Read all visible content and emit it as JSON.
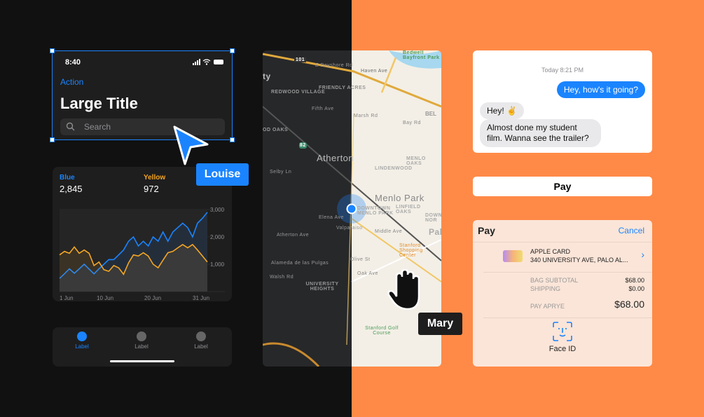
{
  "nav": {
    "time": "8:40",
    "action": "Action",
    "title": "Large Title",
    "search_placeholder": "Search"
  },
  "cursors": {
    "louise": "Louise",
    "mary": "Mary"
  },
  "chart_data": {
    "type": "line",
    "series": [
      {
        "name": "Blue",
        "color": "#1a84ff",
        "headline": "2,845",
        "values": [
          480,
          650,
          830,
          670,
          830,
          1000,
          820,
          650,
          830,
          1000,
          1170,
          1170,
          1340,
          1520,
          1840,
          2000,
          1670,
          1840,
          1670,
          2000,
          1840,
          2180,
          1840,
          2180,
          2340,
          2500,
          2340,
          2000,
          2500,
          2680,
          2900
        ]
      },
      {
        "name": "Yellow",
        "color": "#f5a623",
        "headline": "972",
        "values": [
          1340,
          1470,
          1400,
          1630,
          1400,
          1520,
          1400,
          950,
          1080,
          800,
          740,
          950,
          870,
          630,
          1050,
          1340,
          1300,
          1420,
          1300,
          1000,
          870,
          1150,
          1420,
          1470,
          1600,
          1720,
          1600,
          1720,
          1520,
          1300,
          1080
        ]
      }
    ],
    "x_ticks": [
      "1 Jun",
      "10 Jun",
      "20 Jun",
      "31 Jun"
    ],
    "y_ticks": [
      "3,000",
      "2,000",
      "1,000"
    ],
    "ylim": [
      0,
      3000
    ],
    "grid": true
  },
  "tabbar": {
    "tabs": [
      {
        "label": "Label",
        "active": true
      },
      {
        "label": "Label",
        "active": false
      },
      {
        "label": "Label",
        "active": false
      }
    ]
  },
  "map": {
    "labels": [
      "Bedwell Bayfront Park",
      "101",
      "E Bayshore Rd",
      "Haven Ave",
      "FRIENDLY ACRES",
      "REDWOOD VILLAGE",
      "Fifth Ave",
      "Marsh Rd",
      "Bay Rd",
      "OD OAKS",
      "82",
      "Atherton",
      "MENLO OAKS",
      "LINDENWOOD",
      "Selby Ln",
      "Menlo Park",
      "LINFIELD OAKS",
      "DOWNTOWN MENLO PARK",
      "Elena Ave",
      "Valparaiso",
      "Atherton Ave",
      "Middle Ave",
      "Pal",
      "Stanford Shopping Center",
      "Alameda de las Pulgas",
      "Olive St",
      "Oak Ave",
      "Walsh Rd",
      "UNIVERSITY HEIGHTS",
      "Stanford Golf Course",
      "ty",
      "BEL",
      "DOWNT NOR"
    ]
  },
  "messages": {
    "timestamp": "Today 8:21 PM",
    "sent": "Hey, how's it going?",
    "received": [
      "Hey! ✌️",
      "Almost done my student film. Wanna see the trailer?"
    ]
  },
  "apple_pay_button": {
    "label": " Pay"
  },
  "pay_sheet": {
    "logo": " Pay",
    "cancel": "Cancel",
    "card_name": "APPLE CARD",
    "card_address": "340 UNIVERSITY AVE, PALO AL...",
    "rows": [
      {
        "label": "BAG SUBTOTAL",
        "value": "$68.00"
      },
      {
        "label": "SHIPPING",
        "value": "$0.00"
      }
    ],
    "total_label": "PAY APRYE",
    "total_value": "$68.00",
    "face_id": "Face ID"
  }
}
